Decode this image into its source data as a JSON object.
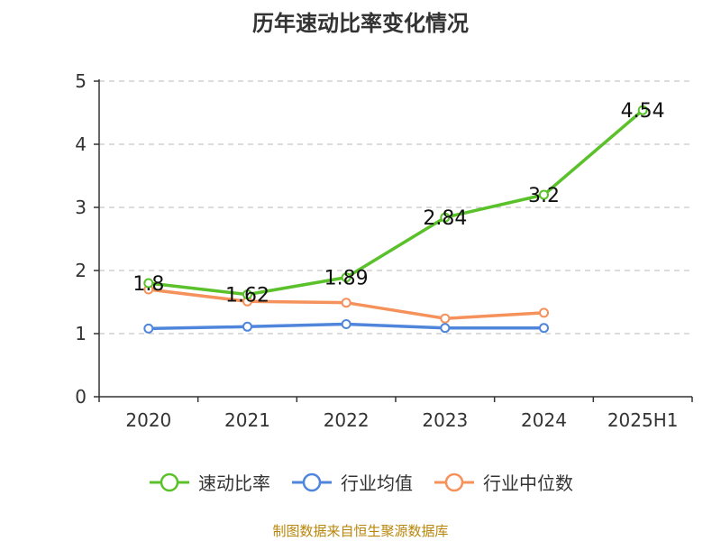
{
  "chart_data": {
    "type": "line",
    "title": "历年速动比率变化情况",
    "categories": [
      "2020",
      "2021",
      "2022",
      "2023",
      "2024",
      "2025H1"
    ],
    "ylim": [
      0,
      5
    ],
    "yticks": [
      0,
      1,
      2,
      3,
      4,
      5
    ],
    "grid": true,
    "legend_position": "bottom",
    "series": [
      {
        "name": "速动比率",
        "color": "#5ac12a",
        "values": [
          1.8,
          1.62,
          1.89,
          2.84,
          3.2,
          4.54
        ],
        "labels": [
          "1.8",
          "1.62",
          "1.89",
          "2.84",
          "3.2",
          "4.54"
        ]
      },
      {
        "name": "行业均值",
        "color": "#4f86db",
        "values": [
          1.08,
          1.11,
          1.15,
          1.09,
          1.09,
          null
        ],
        "labels": []
      },
      {
        "name": "行业中位数",
        "color": "#f5915a",
        "values": [
          1.7,
          1.51,
          1.49,
          1.24,
          1.33,
          null
        ],
        "labels": []
      }
    ],
    "source": "制图数据来自恒生聚源数据库"
  }
}
